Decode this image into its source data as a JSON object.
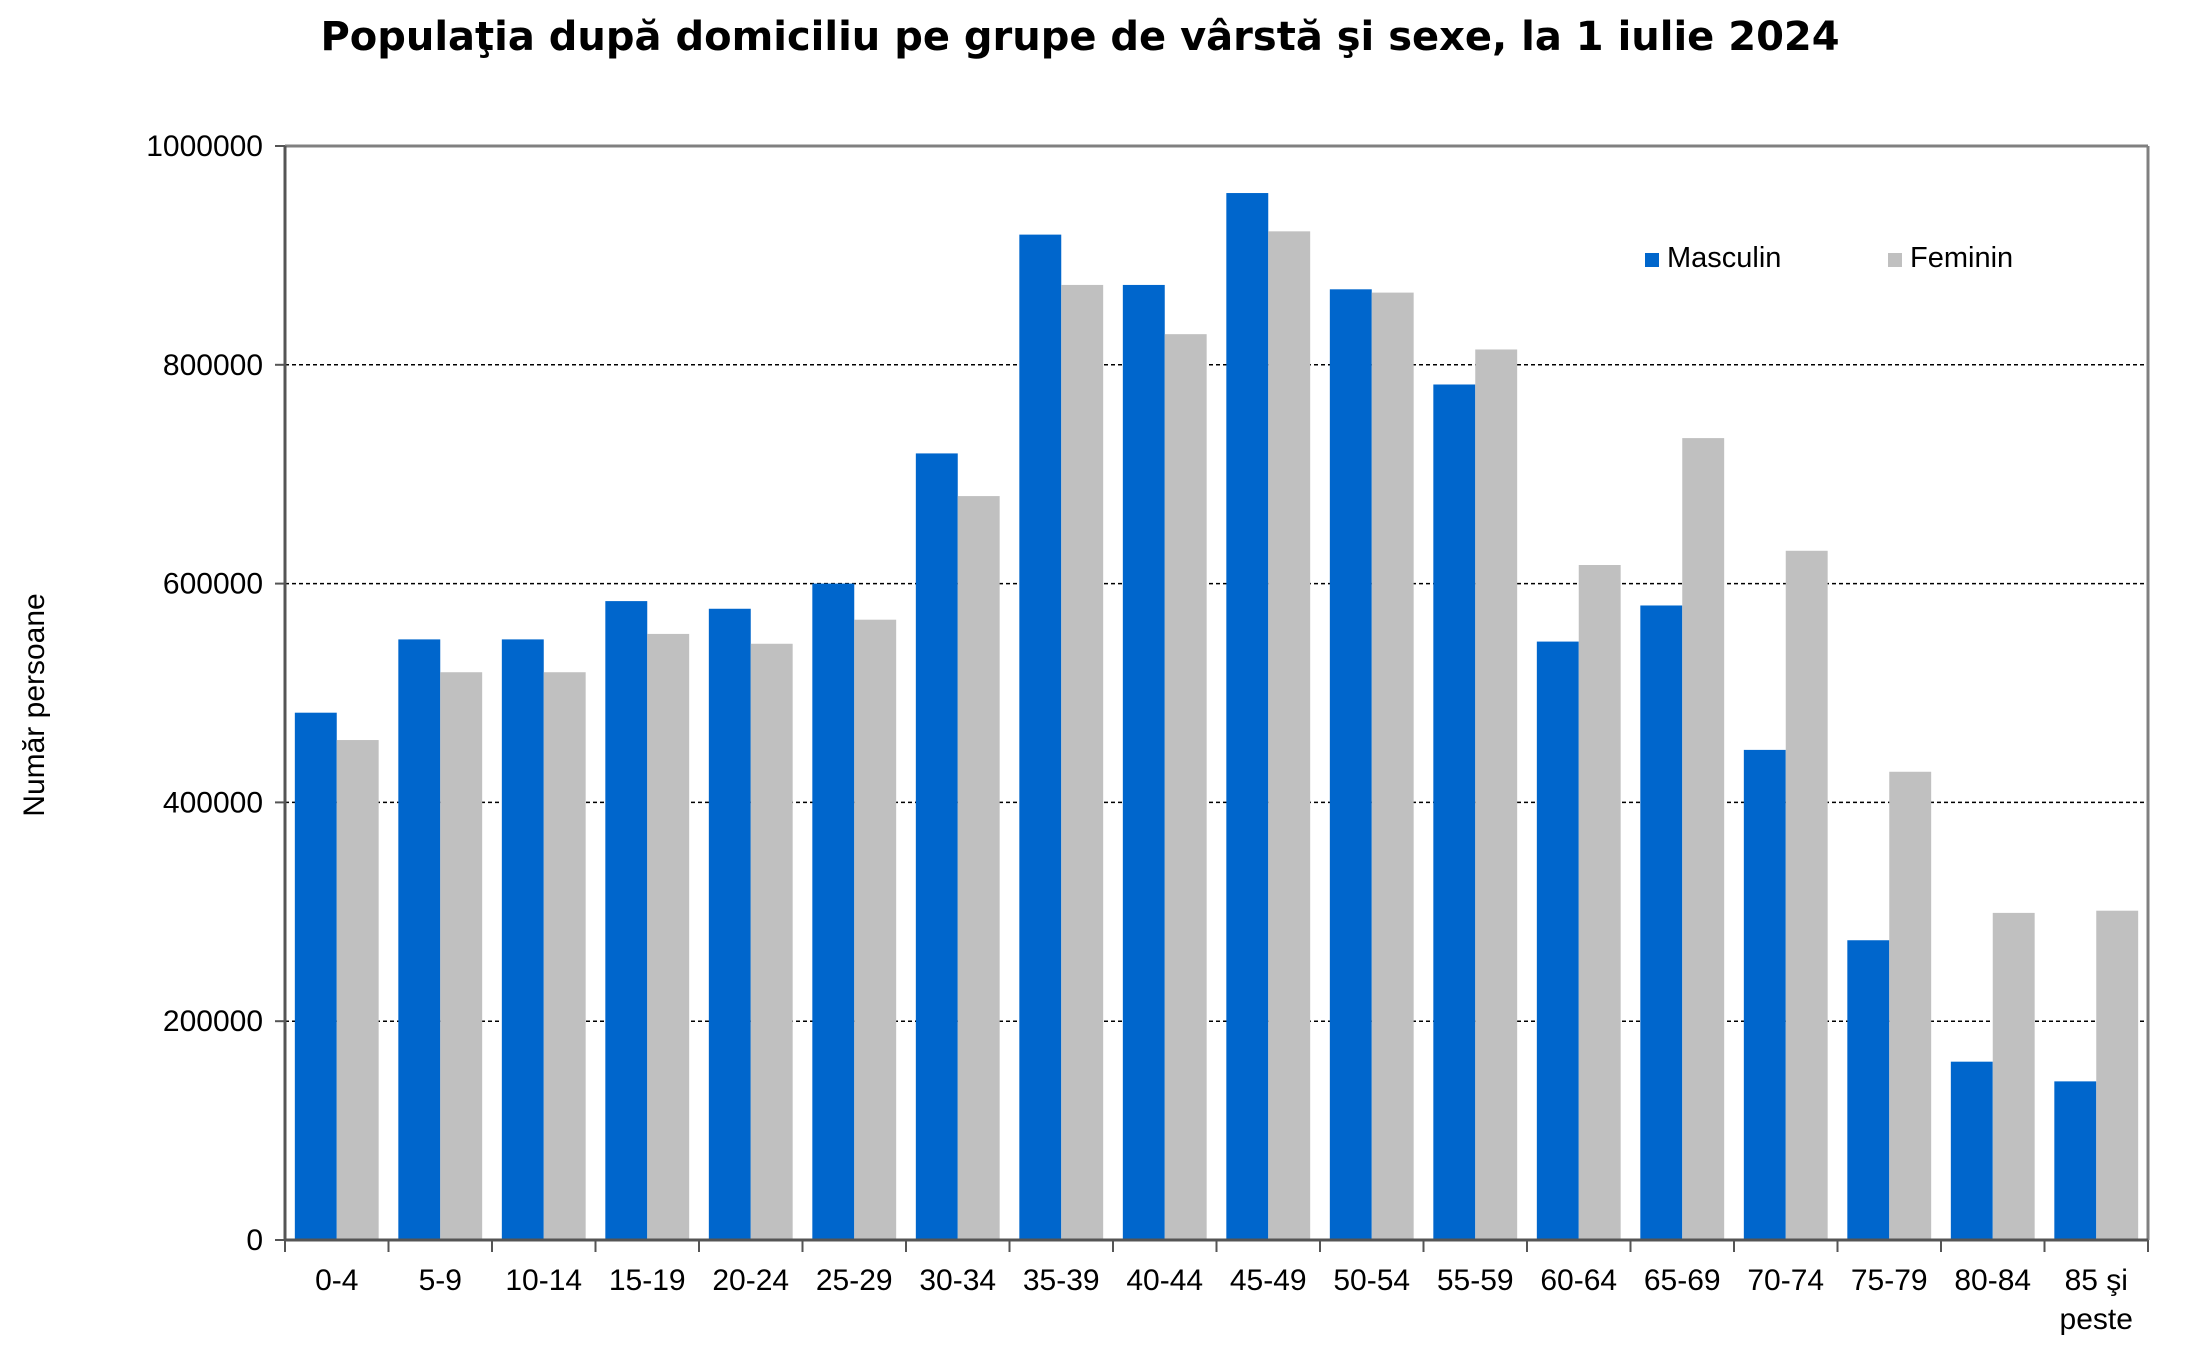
{
  "chart_data": {
    "type": "bar",
    "title": "Populaţia după domiciliu pe grupe de vârstă şi sexe, la 1 iulie 2024",
    "xlabel": "",
    "ylabel": "Număr persoane",
    "ylim": [
      0,
      1000000
    ],
    "yticks": [
      "0",
      "200000",
      "400000",
      "600000",
      "800000",
      "1000000"
    ],
    "grid": true,
    "legend_position": "top-right",
    "categories": [
      "0-4",
      "5-9",
      "10-14",
      "15-19",
      "20-24",
      "25-29",
      "30-34",
      "35-39",
      "40-44",
      "45-49",
      "50-54",
      "55-59",
      "60-64",
      "65-69",
      "70-74",
      "75-79",
      "80-84",
      "85 şi peste"
    ],
    "series": [
      {
        "name": "Masculin",
        "color": "#0066CC",
        "values": [
          482000,
          549000,
          549000,
          584000,
          577000,
          600000,
          719000,
          919000,
          873000,
          957000,
          869000,
          782000,
          547000,
          580000,
          448000,
          274000,
          163000,
          145000
        ]
      },
      {
        "name": "Feminin",
        "color": "#C0C0C0",
        "values": [
          457000,
          519000,
          519000,
          554000,
          545000,
          567000,
          680000,
          873000,
          828000,
          922000,
          866000,
          814000,
          617000,
          733000,
          630000,
          428000,
          299000,
          301000
        ]
      }
    ]
  }
}
